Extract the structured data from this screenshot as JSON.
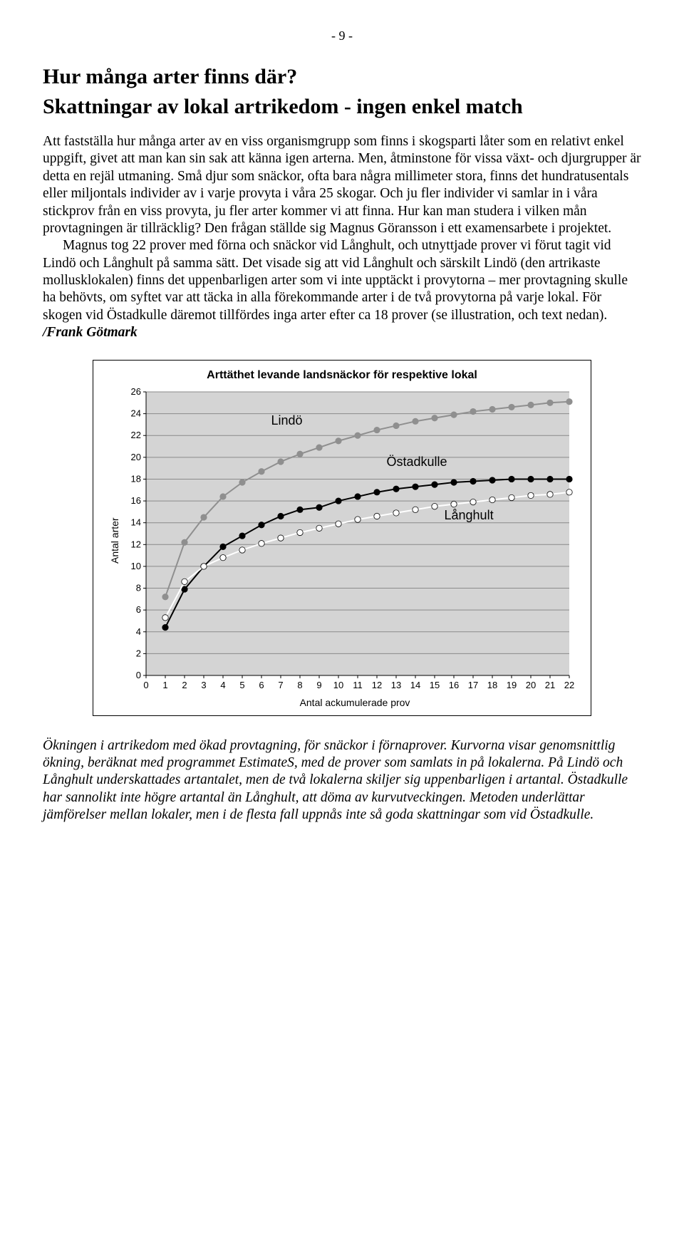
{
  "page_number": "- 9 -",
  "heading1": "Hur många arter finns där?",
  "heading2": "Skattningar av lokal artrikedom - ingen enkel match",
  "para1": "Att fastställa hur många arter av en viss organismgrupp som finns i skogsparti låter som en relativt enkel uppgift, givet att man kan sin sak att känna igen arterna. Men, åtminstone för vissa växt- och djurgrupper är detta en rejäl utmaning. Små djur som snäckor, ofta bara några millimeter stora, finns det hundratusentals eller miljontals individer av i varje provyta i våra 25 skogar. Och ju fler individer vi samlar in i våra stickprov från en viss provyta, ju fler arter kommer vi att finna. Hur kan man studera i vilken mån provtagningen är tillräcklig? Den frågan ställde sig Magnus Göransson i ett examensarbete i projektet.",
  "para2a": "Magnus tog 22 prover med förna och snäckor vid Långhult, och utnyttjade prover vi förut tagit vid Lindö och Långhult på samma sätt. Det visade sig att vid Långhult och särskilt Lindö (den artrikaste mollusklokalen) finns det uppenbarligen arter som vi inte upptäckt i provytorna – mer provtagning skulle ha behövts, om syftet var att täcka in alla förekommande arter i de två provytorna på varje lokal. För skogen vid Östadkulle däremot tillfördes inga arter efter ca 18 prover (se illustration, och text nedan). ",
  "para2b": "/Frank Götmark",
  "chart": {
    "type": "line",
    "title": "Arttäthet levande landsnäckor för respektive lokal",
    "xlabel": "Antal ackumulerade prov",
    "ylabel": "Antal arter",
    "background_color": "#d4d4d4",
    "grid_color": "#8a8a8a",
    "axis_color": "#000000",
    "xlim": [
      0,
      22
    ],
    "ylim": [
      0,
      26
    ],
    "xtick_step": 1,
    "ytick_step": 2,
    "tick_fontsize": 13,
    "label_fontsize": 14,
    "title_fontsize": 16,
    "series": [
      {
        "name": "Lindö",
        "label_x": 6.5,
        "label_y": 23,
        "line_color": "#8f8f8f",
        "marker_color": "#8f8f8f",
        "marker_stroke": "#8f8f8f",
        "line_width": 2,
        "marker_size": 4.2,
        "x": [
          1,
          2,
          3,
          4,
          5,
          6,
          7,
          8,
          9,
          10,
          11,
          12,
          13,
          14,
          15,
          16,
          17,
          18,
          19,
          20,
          21,
          22
        ],
        "y": [
          7.2,
          12.2,
          14.5,
          16.4,
          17.7,
          18.7,
          19.6,
          20.3,
          20.9,
          21.5,
          22.0,
          22.5,
          22.9,
          23.3,
          23.6,
          23.9,
          24.2,
          24.4,
          24.6,
          24.8,
          25.0,
          25.1
        ]
      },
      {
        "name": "Östadkulle",
        "label_x": 12.5,
        "label_y": 19.2,
        "line_color": "#000000",
        "marker_color": "#000000",
        "marker_stroke": "#000000",
        "line_width": 2,
        "marker_size": 4.2,
        "x": [
          1,
          2,
          3,
          4,
          5,
          6,
          7,
          8,
          9,
          10,
          11,
          12,
          13,
          14,
          15,
          16,
          17,
          18,
          19,
          20,
          21,
          22
        ],
        "y": [
          4.4,
          7.9,
          10.0,
          11.8,
          12.8,
          13.8,
          14.6,
          15.2,
          15.4,
          16.0,
          16.4,
          16.8,
          17.1,
          17.3,
          17.5,
          17.7,
          17.8,
          17.9,
          18.0,
          18.0,
          18.0,
          18.0
        ]
      },
      {
        "name": "Långhult",
        "label_x": 15.5,
        "label_y": 14.3,
        "line_color": "#ffffff",
        "marker_color": "#ffffff",
        "marker_stroke": "#000000",
        "line_width": 2,
        "marker_size": 4.2,
        "x": [
          1,
          2,
          3,
          4,
          5,
          6,
          7,
          8,
          9,
          10,
          11,
          12,
          13,
          14,
          15,
          16,
          17,
          18,
          19,
          20,
          21,
          22
        ],
        "y": [
          5.3,
          8.6,
          10.0,
          10.8,
          11.5,
          12.1,
          12.6,
          13.1,
          13.5,
          13.9,
          14.3,
          14.6,
          14.9,
          15.2,
          15.5,
          15.7,
          15.9,
          16.1,
          16.3,
          16.5,
          16.6,
          16.8
        ]
      }
    ],
    "series_label_fontsize": 18
  },
  "caption": "Ökningen i artrikedom med ökad provtagning, för snäckor i förnaprover. Kurvorna visar genomsnittlig ökning, beräknat med programmet EstimateS, med de prover som samlats in på lokalerna. På Lindö och Långhult underskattades artantalet, men de två lokalerna skiljer sig uppenbarligen i artantal. Östadkulle har sannolikt inte högre artantal än Långhult, att döma av kurvutveckingen. Metoden underlättar jämförelser mellan lokaler, men i de flesta fall uppnås inte så goda skattningar som vid Östadkulle."
}
